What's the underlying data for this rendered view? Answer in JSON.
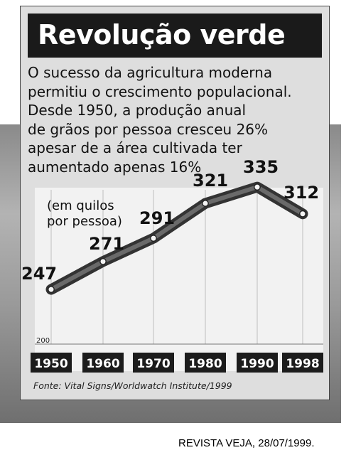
{
  "title": "Revolução verde",
  "description_lines": [
    "O sucesso da agricultura moderna",
    "permitiu o crescimento populacional.",
    "Desde 1950, a produção anual",
    "de grãos por pessoa cresceu 26%",
    "apesar de a área cultivada ter",
    "aumentado apenas 16%"
  ],
  "source": "Fonte: Vital Signs/Worldwatch Institute/1999",
  "credit": "REVISTA VEJA, 28/07/1999.",
  "chart_data": {
    "type": "line",
    "ylabel_lines": [
      "(em quilos",
      "por pessoa)"
    ],
    "x": [
      "1950",
      "1960",
      "1970",
      "1980",
      "1990",
      "1998"
    ],
    "values": [
      247,
      271,
      291,
      321,
      335,
      312
    ],
    "data_labels": [
      "247",
      "271",
      "291",
      "321",
      "335",
      "312"
    ],
    "ylim": [
      200,
      350
    ],
    "y_ticks": [
      "200"
    ],
    "grid": true,
    "line_color": "#333333"
  }
}
